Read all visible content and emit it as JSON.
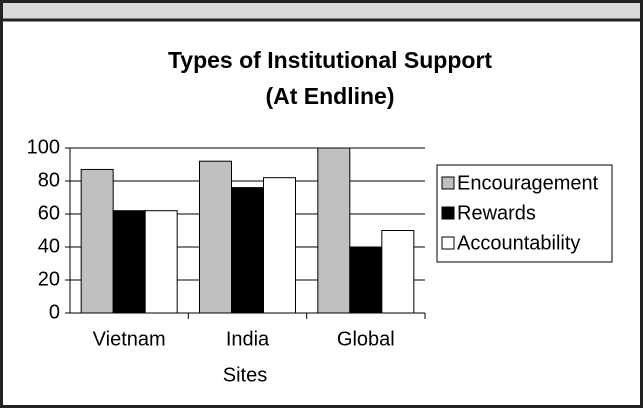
{
  "chart_data": {
    "type": "bar",
    "title": "Types of Institutional Support",
    "subtitle": "(At Endline)",
    "x_label": "Sites",
    "categories": [
      "Vietnam",
      "India",
      "Global"
    ],
    "series": [
      {
        "name": "Encouragement",
        "color": "#c0c0c0",
        "values": [
          87,
          92,
          100
        ]
      },
      {
        "name": "Rewards",
        "color": "#000000",
        "values": [
          62,
          76,
          40
        ]
      },
      {
        "name": "Accountability",
        "color": "#ffffff",
        "values": [
          62,
          82,
          50
        ]
      }
    ],
    "ylim": [
      0,
      100
    ],
    "yticks": [
      0,
      20,
      40,
      60,
      80,
      100
    ],
    "grid": true,
    "legend": "right"
  }
}
